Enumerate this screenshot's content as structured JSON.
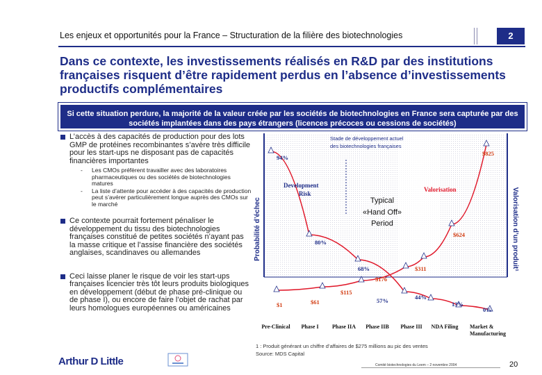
{
  "header": {
    "title": "Les enjeux et opportunités pour la France – Structuration de la filière des biotechnologies",
    "section_number": "2"
  },
  "main_title": "Dans ce contexte, les investissements réalisés en R&D par des institutions françaises risquent d’être rapidement perdus en l’absence d’investissements productifs complémentaires",
  "banner": "Si cette situation perdure, la majorité de la valeur créée par les sociétés de biotechnologies en France sera capturée par des sociétés implantées dans des pays étrangers (licences précoces ou cessions de sociétés)",
  "bullets": [
    {
      "text": "L’accès à des capacités de production pour des lots GMP de protéines recombinantes s’avère très difficile pour les start-ups ne disposant pas de capacités financières importantes",
      "subs": [
        "Les CMOs préfèrent travailler avec des laboratoires pharmaceutiques ou des sociétés de biotechnologies matures",
        "La liste d’attente pour accéder à des capacités de production peut s’avérer particulièrement longue auprès des CMOs sur le marché"
      ]
    },
    {
      "text": "Ce contexte pourrait fortement pénaliser le développement du tissu des biotechnologies françaises constitué de petites sociétés n’ayant pas la masse critique et l’assise financière des sociétés anglaises, scandinaves ou allemandes",
      "subs": []
    },
    {
      "text": "Ceci laisse planer le risque de voir les start-ups françaises licencier très tôt leurs produits biologiques en développement (début de phase pré-clinique ou de phase I), ou encore de faire l’objet de rachat par leurs homologues européennes ou américaines",
      "subs": []
    }
  ],
  "chart_data": {
    "type": "line",
    "title": "",
    "y_axis_left_label": "Probabilité d’échec",
    "y_axis_right_label": "Valorisation d’un produit¹",
    "stage_note": "Stade de développement actuel des biotechnologies françaises",
    "x_categories": [
      "Pre-Clinical",
      "Phase I",
      "Phase IIA",
      "Phase IIB",
      "Phase III",
      "NDA Filing",
      "Market & Manufacturing"
    ],
    "failure_probability": {
      "name": "Development Risk",
      "labels": [
        "94%",
        "80%",
        "68%",
        "57%",
        "44%",
        "13%",
        "0%"
      ]
    },
    "valuation": {
      "name": "Valorisation",
      "labels": [
        "$1",
        "$61",
        "$115",
        "$176",
        "$311",
        "$624",
        "$825"
      ]
    },
    "annotations": [
      "Development Risk",
      "Valorisation",
      "Typical",
      "«Hand Off»",
      "Period"
    ]
  },
  "footnote": {
    "line1": "1 : Produit générant un chiffre d’affaires de $275 millions au pic des ventes",
    "line2": "Source: MDS Capital"
  },
  "footer": {
    "logo": "Arthur D Little",
    "confidential": "Comité biotechnologies du Leem – 2 novembre 2004",
    "page": "20"
  },
  "colors": {
    "navy": "#1e2d88",
    "chart_red": "#e0182a",
    "value_orange": "#d23b10"
  }
}
